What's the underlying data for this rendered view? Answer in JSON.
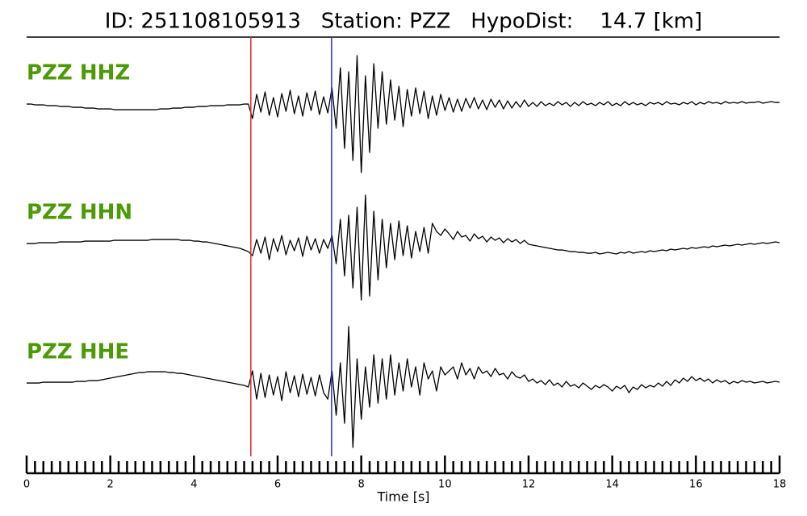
{
  "chart_data": {
    "type": "seismogram",
    "title": "ID: 251108105913   Station: PZZ   HypoDist:    14.7 [km]",
    "xlabel": "Time [s]",
    "xlim": [
      0,
      18
    ],
    "xticks": [
      0,
      2,
      4,
      6,
      8,
      10,
      12,
      14,
      16,
      18
    ],
    "xminorticks": [
      0.2,
      0.4,
      0.6,
      0.8,
      1,
      1.2,
      1.4,
      1.6,
      1.8,
      2.2,
      2.4,
      2.6,
      2.8,
      3,
      3.2,
      3.4,
      3.6,
      3.8,
      4.2,
      4.4,
      4.6,
      4.8,
      5,
      5.2,
      5.4,
      5.6,
      5.8,
      6.2,
      6.4,
      6.6,
      6.8,
      7,
      7.2,
      7.4,
      7.6,
      7.8,
      8.2,
      8.4,
      8.6,
      8.8,
      9,
      9.2,
      9.4,
      9.6,
      9.8,
      10.2,
      10.4,
      10.6,
      10.8,
      11,
      11.2,
      11.4,
      11.6,
      11.8,
      12.2,
      12.4,
      12.6,
      12.8,
      13,
      13.2,
      13.4,
      13.6,
      13.8,
      14.2,
      14.4,
      14.6,
      14.8,
      15,
      15.2,
      15.4,
      15.6,
      15.8,
      16.2,
      16.4,
      16.6,
      16.8,
      17,
      17.2,
      17.4,
      17.6,
      17.8
    ],
    "ylim": [
      -100,
      100
    ],
    "label_color": "#4b9a06",
    "picks": [
      {
        "x": 5.36,
        "color": "#e8262b"
      },
      {
        "x": 7.29,
        "color": "#2b2bd0"
      }
    ],
    "x": [
      0,
      0.1,
      0.2,
      0.3,
      0.4,
      0.5,
      0.6,
      0.7,
      0.8,
      0.9,
      1,
      1.1,
      1.2,
      1.3,
      1.4,
      1.5,
      1.6,
      1.7,
      1.8,
      1.9,
      2,
      2.1,
      2.2,
      2.3,
      2.4,
      2.5,
      2.6,
      2.7,
      2.8,
      2.9,
      3,
      3.1,
      3.2,
      3.3,
      3.4,
      3.5,
      3.6,
      3.7,
      3.8,
      3.9,
      4,
      4.1,
      4.2,
      4.3,
      4.4,
      4.5,
      4.6,
      4.7,
      4.8,
      4.9,
      5,
      5.1,
      5.2,
      5.3,
      5.4,
      5.5,
      5.6,
      5.7,
      5.8,
      5.9,
      6,
      6.1,
      6.2,
      6.3,
      6.4,
      6.5,
      6.6,
      6.7,
      6.8,
      6.9,
      7,
      7.1,
      7.2,
      7.3,
      7.4,
      7.5,
      7.6,
      7.7,
      7.8,
      7.9,
      8,
      8.1,
      8.2,
      8.3,
      8.4,
      8.5,
      8.6,
      8.7,
      8.8,
      8.9,
      9,
      9.1,
      9.2,
      9.3,
      9.4,
      9.5,
      9.6,
      9.7,
      9.8,
      9.9,
      10,
      10.1,
      10.2,
      10.3,
      10.4,
      10.5,
      10.6,
      10.7,
      10.8,
      10.9,
      11,
      11.1,
      11.2,
      11.3,
      11.4,
      11.5,
      11.6,
      11.7,
      11.8,
      11.9,
      12,
      12.1,
      12.2,
      12.3,
      12.4,
      12.5,
      12.6,
      12.7,
      12.8,
      12.9,
      13,
      13.1,
      13.2,
      13.3,
      13.4,
      13.5,
      13.6,
      13.7,
      13.8,
      13.9,
      14,
      14.1,
      14.2,
      14.3,
      14.4,
      14.5,
      14.6,
      14.7,
      14.8,
      14.9,
      15,
      15.1,
      15.2,
      15.3,
      15.4,
      15.5,
      15.6,
      15.7,
      15.8,
      15.9,
      16,
      16.1,
      16.2,
      16.3,
      16.4,
      16.5,
      16.6,
      16.7,
      16.8,
      16.9,
      17,
      17.1,
      17.2,
      17.3,
      17.4,
      17.5,
      17.6,
      17.7,
      17.8,
      17.9,
      18
    ],
    "series": [
      {
        "name": "PZZ HHZ",
        "color": "#000000",
        "values": [
          0,
          0,
          -1,
          -1,
          -1,
          -2,
          -2,
          -2,
          -3,
          -3,
          -3,
          -4,
          -4,
          -4,
          -5,
          -5,
          -5,
          -6,
          -6,
          -6,
          -6,
          -7,
          -7,
          -7,
          -7,
          -7,
          -7,
          -7,
          -7,
          -7,
          -7,
          -7,
          -6,
          -6,
          -6,
          -5,
          -5,
          -5,
          -4,
          -4,
          -4,
          -3,
          -3,
          -3,
          -2,
          -2,
          -2,
          -2,
          -1,
          -1,
          -1,
          -1,
          0,
          0,
          -18,
          12,
          -10,
          15,
          -14,
          8,
          -16,
          13,
          -9,
          17,
          -12,
          10,
          -15,
          14,
          -8,
          16,
          -13,
          9,
          -11,
          20,
          -30,
          45,
          -55,
          40,
          -70,
          60,
          -85,
          35,
          -60,
          50,
          -30,
          40,
          -25,
          30,
          -20,
          22,
          -28,
          18,
          -15,
          20,
          -12,
          16,
          -18,
          10,
          -14,
          12,
          -8,
          8,
          -10,
          6,
          -9,
          7,
          -5,
          8,
          -6,
          5,
          -7,
          6,
          -4,
          5,
          -6,
          4,
          -5,
          3,
          -4,
          5,
          -3,
          2,
          -3,
          3,
          -2,
          1,
          -2,
          3,
          -1,
          2,
          -3,
          2,
          -2,
          3,
          -1,
          1,
          -2,
          2,
          -1,
          3,
          -2,
          1,
          -2,
          3,
          -1,
          2,
          -1,
          1,
          -2,
          2,
          0,
          2,
          -1,
          3,
          0,
          1,
          -1,
          2,
          0,
          3,
          -1,
          2,
          0,
          3,
          1,
          2,
          0,
          3,
          1,
          2,
          1,
          3,
          1,
          2,
          2,
          3,
          1,
          2,
          3,
          2,
          2
        ]
      },
      {
        "name": "PZZ HHN",
        "color": "#000000",
        "values": [
          0,
          0,
          0,
          1,
          1,
          1,
          1,
          1,
          2,
          2,
          2,
          2,
          2,
          2,
          3,
          3,
          3,
          3,
          3,
          3,
          3,
          4,
          4,
          4,
          4,
          4,
          4,
          4,
          4,
          4,
          5,
          5,
          5,
          5,
          5,
          5,
          5,
          4,
          4,
          4,
          3,
          3,
          2,
          2,
          1,
          0,
          -1,
          -2,
          -3,
          -4,
          -5,
          -6,
          -8,
          -10,
          -15,
          5,
          -12,
          8,
          -20,
          6,
          -10,
          10,
          -14,
          4,
          -9,
          7,
          -16,
          9,
          -8,
          6,
          -12,
          5,
          -6,
          10,
          -25,
          30,
          -40,
          35,
          -55,
          45,
          -70,
          60,
          -65,
          40,
          -45,
          30,
          -30,
          25,
          -20,
          28,
          -15,
          22,
          -18,
          15,
          -10,
          20,
          -12,
          25,
          15,
          10,
          18,
          12,
          5,
          15,
          8,
          10,
          3,
          12,
          6,
          9,
          2,
          8,
          4,
          7,
          1,
          6,
          2,
          5,
          0,
          4,
          -1,
          -2,
          -3,
          -4,
          -5,
          -6,
          -7,
          -8,
          -8,
          -9,
          -10,
          -10,
          -11,
          -11,
          -12,
          -12,
          -11,
          -13,
          -12,
          -11,
          -12,
          -13,
          -11,
          -12,
          -10,
          -12,
          -11,
          -10,
          -11,
          -9,
          -10,
          -9,
          -8,
          -9,
          -7,
          -8,
          -7,
          -6,
          -7,
          -5,
          -6,
          -5,
          -4,
          -5,
          -3,
          -4,
          -3,
          -2,
          -3,
          -2,
          -1,
          -2,
          -1,
          0,
          -1,
          0,
          1,
          0,
          1,
          2,
          1
        ]
      },
      {
        "name": "PZZ HHE",
        "color": "#000000",
        "values": [
          0,
          0,
          0,
          0,
          1,
          1,
          1,
          1,
          1,
          1,
          1,
          1,
          2,
          2,
          2,
          3,
          3,
          3,
          4,
          5,
          6,
          7,
          8,
          9,
          10,
          11,
          12,
          13,
          13,
          14,
          14,
          14,
          14,
          14,
          13,
          13,
          12,
          12,
          11,
          10,
          9,
          8,
          7,
          6,
          5,
          4,
          3,
          2,
          1,
          0,
          -1,
          -2,
          -3,
          -5,
          15,
          -20,
          12,
          -18,
          10,
          -15,
          8,
          -22,
          14,
          -12,
          9,
          -17,
          11,
          -14,
          7,
          -16,
          10,
          -12,
          -20,
          15,
          -40,
          25,
          -50,
          70,
          -80,
          30,
          -45,
          20,
          -30,
          35,
          -25,
          30,
          -20,
          35,
          -15,
          25,
          -10,
          30,
          -5,
          20,
          -15,
          25,
          5,
          15,
          -10,
          20,
          10,
          15,
          20,
          5,
          25,
          10,
          18,
          5,
          20,
          12,
          15,
          8,
          18,
          10,
          12,
          5,
          14,
          8,
          6,
          10,
          2,
          5,
          0,
          3,
          -2,
          4,
          -3,
          0,
          -5,
          2,
          -4,
          -2,
          -6,
          0,
          -4,
          -8,
          -3,
          -6,
          -2,
          -5,
          -10,
          -4,
          -7,
          -3,
          -12,
          -5,
          -8,
          -2,
          -6,
          -3,
          -5,
          0,
          -4,
          2,
          -3,
          4,
          0,
          6,
          2,
          8,
          3,
          6,
          2,
          5,
          0,
          4,
          1,
          3,
          -1,
          2,
          0,
          3,
          1,
          2,
          0,
          1,
          2,
          0,
          1,
          2,
          1
        ]
      }
    ]
  }
}
